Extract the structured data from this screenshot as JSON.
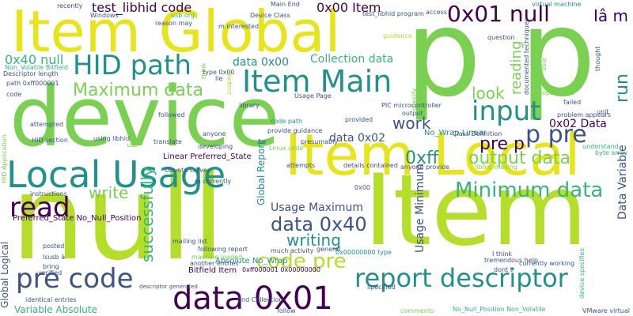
{
  "palette": {
    "lime": "#b5de2b",
    "green": "#7ad151",
    "teal": "#21918c",
    "blue": "#3b528b",
    "indigo": "#440154",
    "yellow": "#e7e419",
    "mint": "#5ec962",
    "seafoam": "#35b779"
  },
  "words": {
    "w_p_p": "p p",
    "w_device": "device",
    "w_item_global": "Item Global",
    "w_null": "null",
    "w_item": "Item",
    "w_item_local": "Item Local",
    "w_local_usage": "Local Usage",
    "w_item_main": "Item Main",
    "w_hid_path": "HID path",
    "w_input": "input",
    "w_report_descriptor": "report descriptor",
    "w_data_0x01": "data 0x01",
    "w_pre_code": "pre code",
    "w_0x01_null": "0x01 null",
    "w_read": "read",
    "w_maximum_data": "Maximum data",
    "w_minimum_data": "Minimum data",
    "w_data_0x40": "data 0x40",
    "w_code_pre": "code pre",
    "w_p_pre": "p pre",
    "w_0xff": "0xff",
    "w_output_data": "output data",
    "w_writing": "writing",
    "w_write": "write",
    "w_look": "look",
    "w_pre_p": "pre p",
    "w_work": "work",
    "w_successfully": "successfully",
    "w_usage_maximum": "Usage Maximum",
    "w_usage_minimum": "Usage Minimum",
    "w_reading": "reading",
    "w_run": "run",
    "w_ia_m": "Iâ m",
    "w_0x40_null": "0x40 null",
    "w_data_0x00": "data 0x00",
    "w_collection_data": "Collection data",
    "w_test_libhid_code": "test_libhid code",
    "w_0x00_item": "0x00 Item",
    "w_data_0x02": "data 0x02",
    "w_0x02_data": "0x02 Data",
    "w_data_variable": "Data Variable",
    "w_global_report": "Global Report",
    "w_global_logical": "Global Logical",
    "w_variable_absolute": "Variable Absolute",
    "w_linear_preferred_state": "Linear Preferred_State",
    "w_no_wrap_linear": "No_Wrap Linear",
    "w_preferred_no_null": "Preferred_State No_Null_Position",
    "w_absolute_no_wrap": "Absolute No_Wrap",
    "w_bitfield_item": "Bitfield Item",
    "w_0xff000001": "0xff000001 0x00000000",
    "w_0x00000000_type": "0x00000000 type",
    "w_no_null_nonvolatile": "No_Null_Position Non_Volatile",
    "w_path_0xff": "path 0xff000001",
    "w_descriptor_length": "Descriptor length",
    "w_non_volatile_bitfield": "Non_Volatile Bitfield",
    "w_recently": "recently",
    "w_windows": "Windows",
    "w_usb_org": "usb.org",
    "w_reason_may": "reason may",
    "w_m_interested": "m interested",
    "w_device_class": "Device Class",
    "w_test_libhid_program": "test_libhid program",
    "w_access": "access",
    "w_virtual_machine": "virtual machine",
    "w_guidance": "guidance",
    "w_question": "question",
    "w_documented_techniques": "documented techniques",
    "w_thought": "thought",
    "w_report_size": "Report Size",
    "w_failed": "failed",
    "w_problem_appears": "problem appears",
    "w_understand": "understand",
    "w_byte_array": "byte array",
    "w_pic_micro": "PIC microcontroller",
    "w_output": "output",
    "w_usage_page": "Usage Page",
    "w_library": "library",
    "w_code_path": "code path",
    "w_provide_guidance": "provide guidance",
    "w_provided": "provided",
    "w_presumably": "presumably",
    "w_class_definition": "Class Definition",
    "w_details_contained": "details contained",
    "w_anyone_provide": "anyone provide",
    "w_libhid_mailing": "libhid mailing",
    "w_using_libhid": "using libhid",
    "w_translate": "translate",
    "w_developing": "developing",
    "w_anyone": "anyone",
    "w_followed": "followed",
    "w_attempted": "attempted",
    "w_hid_section": "HID section",
    "w_ubuntu_server": "Ubuntu server",
    "w_m_currently": "m currently",
    "w_instructions": "instructions",
    "w_following_report": "following report",
    "w_machine_loaded": "machine loaded",
    "w_another_entries": "another entries",
    "w_mailing_list": "mailing list",
    "w_much_activity": "much activity",
    "w_general": "general",
    "w_i_think": "I think",
    "w_tremendous_help": "tremendous help",
    "w_currently_working": "currently working",
    "w_dont_t": "dont t",
    "w_device_specifies": "device specifies",
    "w_vmware_virtual": "VMware virtual",
    "w_end_collection": "End Collection",
    "w_identical_entries": "identical entries",
    "w_posted": "posted",
    "w_lsusb_a": "lsusb à",
    "w_bring": "bring",
    "w_verified": "verified",
    "w_descriptor_generated": "descriptor generated",
    "w_follow": "follow",
    "w_specified": "specified",
    "w_main_end": "Main End",
    "w_attempts": "attempts",
    "w_0x00": "0x00",
    "w_type_0x00": "type 0x00",
    "w_suspect": "suspect",
    "w_think": "think",
    "w_lie": "lie",
    "w_code": "code",
    "w_hid_application": "HID Application",
    "w_able": "able",
    "w_unit": "unit",
    "w_linux_code": "Linux code",
    "w_for": "for",
    "w_specify": "specify",
    "w_usb": "usb",
    "w_output_data2": "output data",
    "w_comments": "comments"
  }
}
